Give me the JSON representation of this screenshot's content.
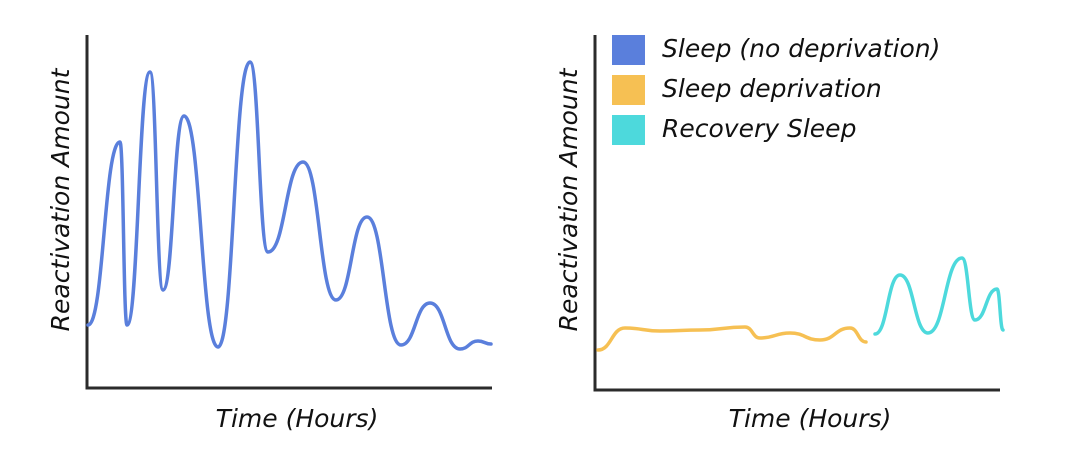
{
  "panels": [
    {
      "y_label": "Reactivation Amount",
      "x_label": "Time (Hours)"
    },
    {
      "y_label": "Reactivation Amount",
      "x_label": "Time (Hours)",
      "legend": [
        "Sleep (no deprivation)",
        "Sleep deprivation",
        "Recovery Sleep"
      ]
    }
  ]
}
